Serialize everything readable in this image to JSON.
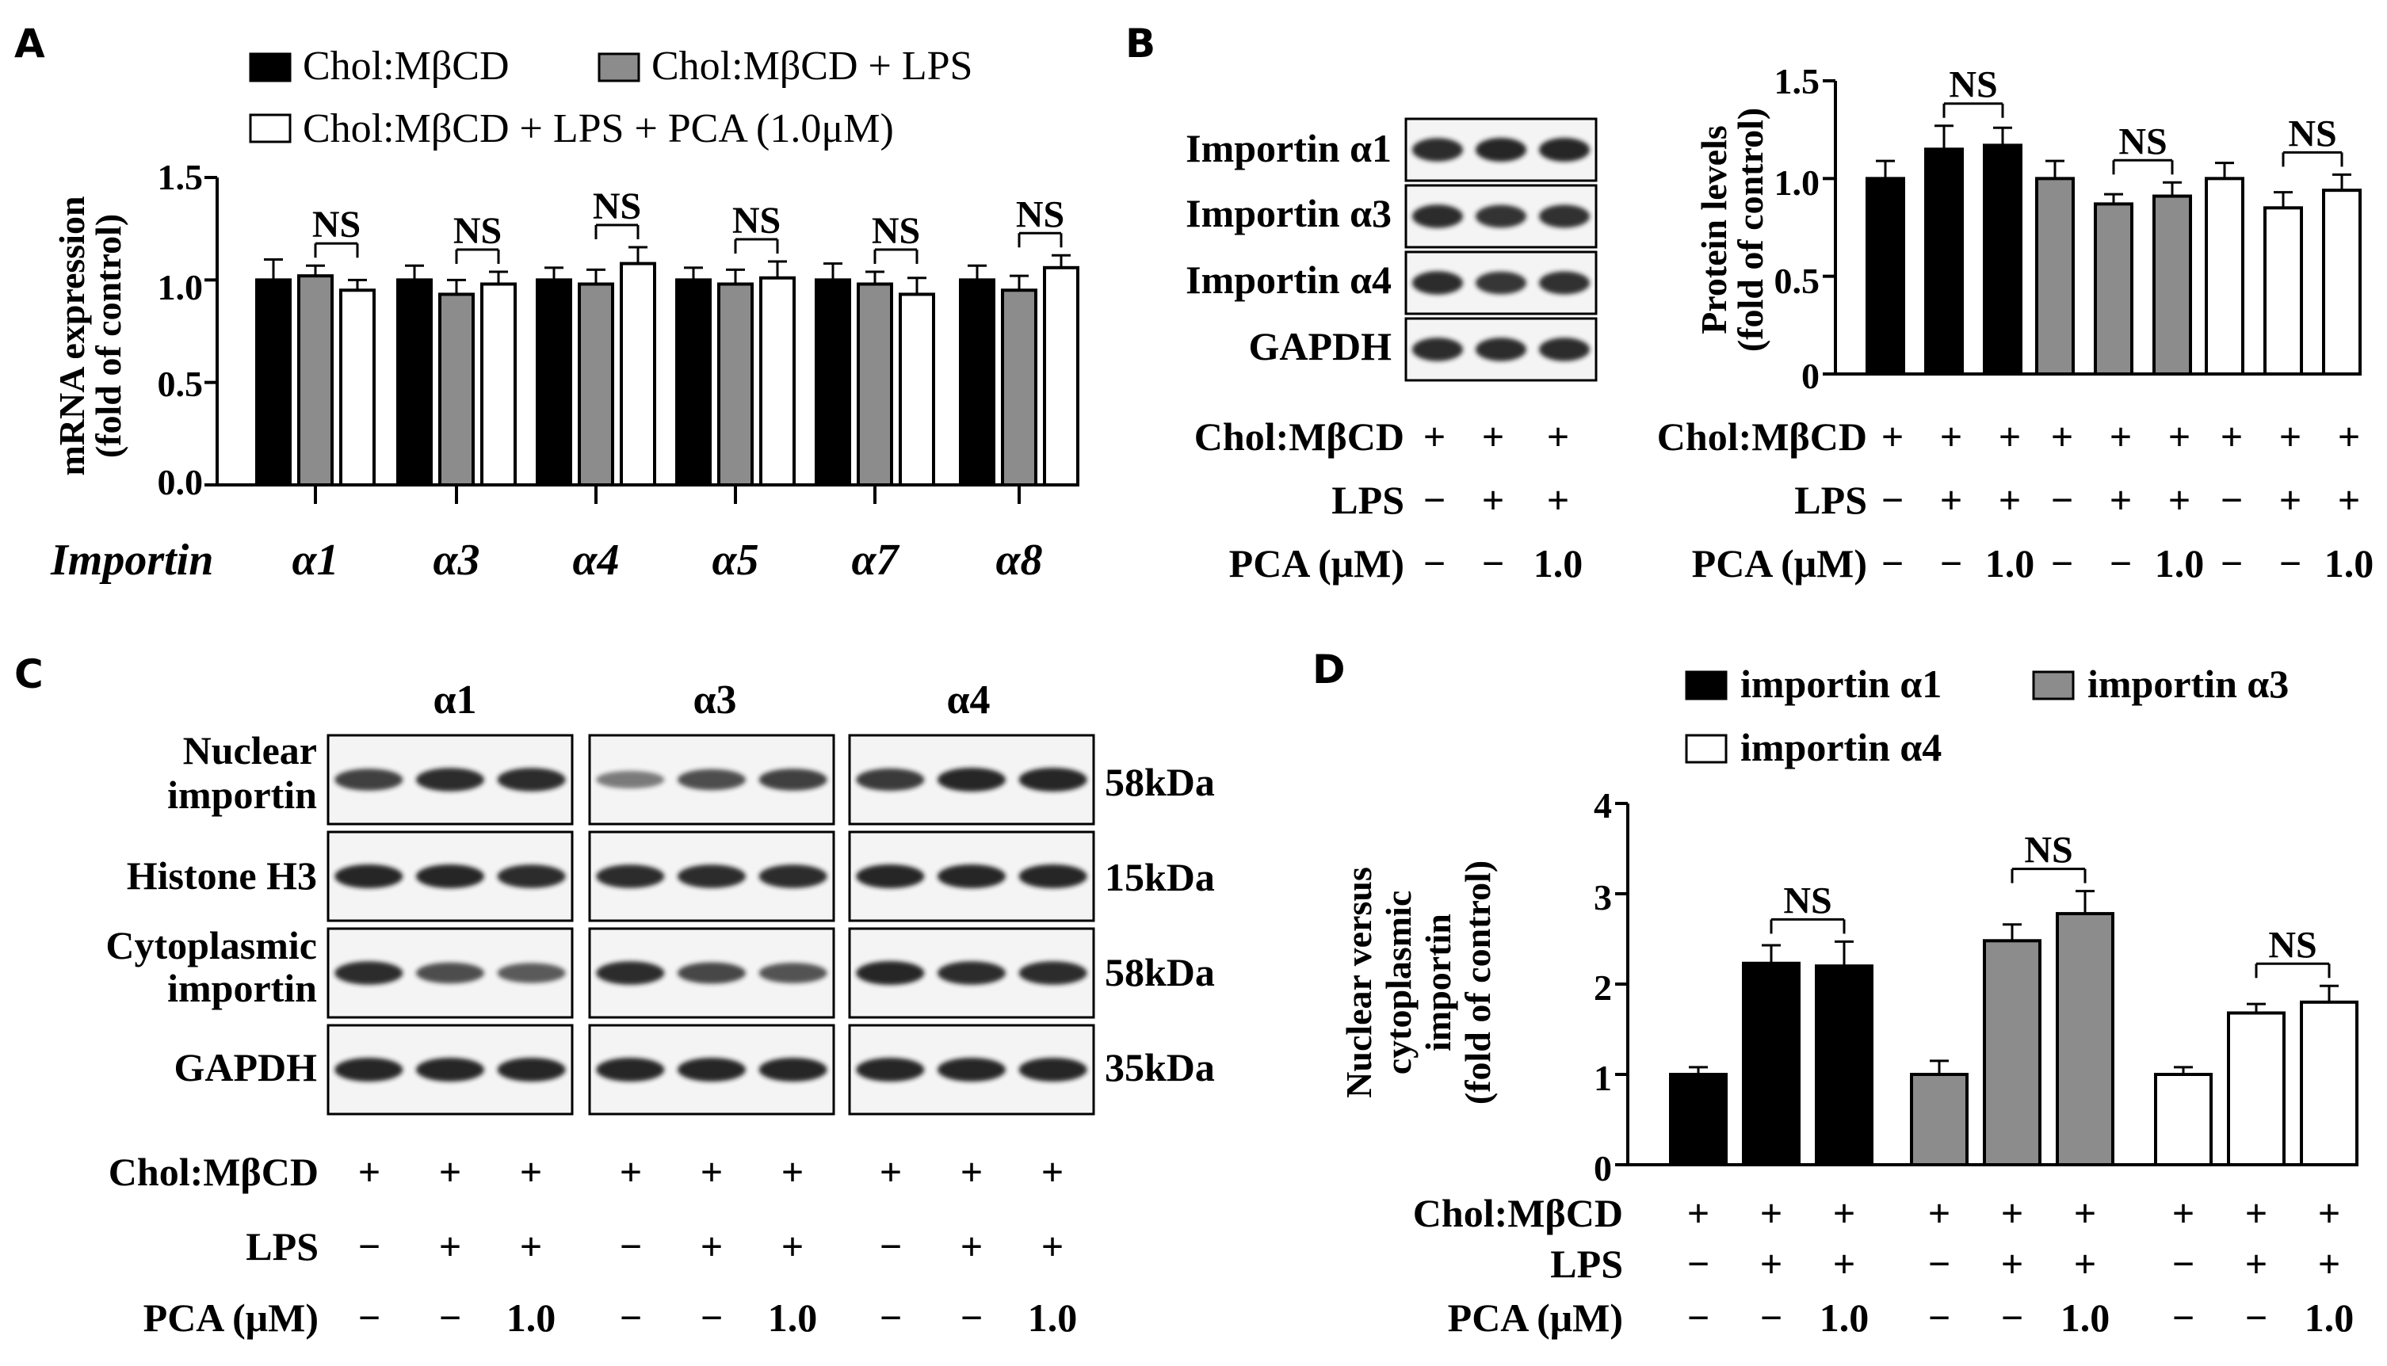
{
  "colors": {
    "black_bar": "#000000",
    "gray_bar": "#8c8c8c",
    "white_bar": "#ffffff",
    "blot_bg": "#f4f4f4",
    "band": "#1a1a1a"
  },
  "panels": {
    "A": {
      "label": "A",
      "legend": [
        "Chol:MβCD",
        "Chol:MβCD + LPS",
        "Chol:MβCD + LPS + PCA (1.0μM)"
      ],
      "ylabel_line1": "mRNA expression",
      "ylabel_line2": "(fold of control)",
      "yticks": [
        "1.5",
        "1.0",
        "0.5",
        "0.0"
      ],
      "xtitle": "Importin",
      "groups": [
        "α1",
        "α3",
        "α4",
        "α5",
        "α7",
        "α8"
      ],
      "sig": "NS"
    },
    "B": {
      "label": "B",
      "blot_labels": [
        "Importin α1",
        "Importin α3",
        "Importin α4",
        "GAPDH"
      ],
      "ylabel_line1": "Protein levels",
      "ylabel_line2": "(fold  of  control)",
      "yticks": [
        "1.5",
        "1.0",
        "0.5",
        "0"
      ],
      "sig": "NS",
      "rows": [
        {
          "name": "Chol:MβCD",
          "blot": [
            "+",
            "+",
            "+"
          ],
          "chart": [
            "+",
            "+",
            "+",
            "+",
            "+",
            "+",
            "+",
            "+",
            "+"
          ]
        },
        {
          "name": "LPS",
          "blot": [
            "−",
            "+",
            "+"
          ],
          "chart": [
            "−",
            "+",
            "+",
            "−",
            "+",
            "+",
            "−",
            "+",
            "+"
          ]
        },
        {
          "name": "PCA (μM)",
          "blot": [
            "−",
            "−",
            "1.0"
          ],
          "chart": [
            "−",
            "−",
            "1.0",
            "−",
            "−",
            "1.0",
            "−",
            "−",
            "1.0"
          ]
        }
      ]
    },
    "C": {
      "label": "C",
      "columns": [
        "α1",
        "α3",
        "α4"
      ],
      "row_labels": [
        [
          "Nuclear",
          "importin"
        ],
        [
          "Histone H3"
        ],
        [
          "Cytoplasmic",
          "importin"
        ],
        [
          "GAPDH"
        ]
      ],
      "sizes": [
        "58kDa",
        "15kDa",
        "58kDa",
        "35kDa"
      ],
      "rows": [
        {
          "name": "Chol:MβCD",
          "values": [
            "+",
            "+",
            "+",
            "+",
            "+",
            "+",
            "+",
            "+",
            "+"
          ]
        },
        {
          "name": "LPS",
          "values": [
            "−",
            "+",
            "+",
            "−",
            "+",
            "+",
            "−",
            "+",
            "+"
          ]
        },
        {
          "name": "PCA (μM)",
          "values": [
            "−",
            "−",
            "1.0",
            "−",
            "−",
            "1.0",
            "−",
            "−",
            "1.0"
          ]
        }
      ]
    },
    "D": {
      "label": "D",
      "legend": [
        "importin α1",
        "importin α3",
        "importin α4"
      ],
      "ylabel_lines": [
        "Nuclear versus",
        "cytoplasmic",
        "importin",
        "(fold  of  control)"
      ],
      "yticks": [
        "4",
        "3",
        "2",
        "1",
        "0"
      ],
      "sig": "NS",
      "rows": [
        {
          "name": "Chol:MβCD",
          "values": [
            "+",
            "+",
            "+",
            "+",
            "+",
            "+",
            "+",
            "+",
            "+"
          ]
        },
        {
          "name": "LPS",
          "values": [
            "−",
            "+",
            "+",
            "−",
            "+",
            "+",
            "−",
            "+",
            "+"
          ]
        },
        {
          "name": "PCA (μM)",
          "values": [
            "−",
            "−",
            "1.0",
            "−",
            "−",
            "1.0",
            "−",
            "−",
            "1.0"
          ]
        }
      ]
    }
  },
  "chart_data": [
    {
      "panel": "A",
      "type": "bar",
      "ylabel": "mRNA expression (fold of control)",
      "xlabel": "Importin",
      "ylim": [
        0,
        1.5
      ],
      "categories": [
        "α1",
        "α3",
        "α4",
        "α5",
        "α7",
        "α8"
      ],
      "series": [
        {
          "name": "Chol:MβCD",
          "color": "black",
          "values": [
            1.0,
            1.0,
            1.0,
            1.0,
            1.0,
            1.0
          ],
          "errors": [
            0.1,
            0.07,
            0.06,
            0.06,
            0.08,
            0.07
          ]
        },
        {
          "name": "Chol:MβCD + LPS",
          "color": "gray",
          "values": [
            1.02,
            0.93,
            0.98,
            0.98,
            0.98,
            0.95
          ],
          "errors": [
            0.05,
            0.07,
            0.07,
            0.07,
            0.06,
            0.07
          ]
        },
        {
          "name": "Chol:MβCD + LPS + PCA (1.0μM)",
          "color": "white",
          "values": [
            0.95,
            0.98,
            1.08,
            1.01,
            0.93,
            1.06
          ],
          "errors": [
            0.05,
            0.06,
            0.08,
            0.08,
            0.08,
            0.06
          ]
        }
      ],
      "annotations": [
        "NS",
        "NS",
        "NS",
        "NS",
        "NS",
        "NS"
      ]
    },
    {
      "panel": "B",
      "type": "bar",
      "ylabel": "Protein levels (fold of control)",
      "ylim": [
        0,
        1.5
      ],
      "groups": [
        {
          "colour": "black",
          "values": [
            1.0,
            1.15,
            1.17
          ],
          "errors": [
            0.09,
            0.12,
            0.09
          ]
        },
        {
          "colour": "gray",
          "values": [
            1.0,
            0.87,
            0.91
          ],
          "errors": [
            0.09,
            0.05,
            0.07
          ]
        },
        {
          "colour": "white",
          "values": [
            1.0,
            0.85,
            0.94
          ],
          "errors": [
            0.08,
            0.08,
            0.08
          ]
        }
      ],
      "annotations": [
        "NS",
        "NS",
        "NS"
      ]
    },
    {
      "panel": "D",
      "type": "bar",
      "ylabel": "Nuclear versus cytoplasmic importin (fold of control)",
      "ylim": [
        0,
        4
      ],
      "series": [
        {
          "name": "importin α1",
          "color": "black",
          "values": [
            1.0,
            2.23,
            2.2
          ],
          "errors": [
            0.08,
            0.2,
            0.27
          ]
        },
        {
          "name": "importin α3",
          "color": "gray",
          "values": [
            1.0,
            2.48,
            2.78
          ],
          "errors": [
            0.15,
            0.18,
            0.25
          ]
        },
        {
          "name": "importin α4",
          "color": "white",
          "values": [
            1.0,
            1.68,
            1.8
          ],
          "errors": [
            0.08,
            0.1,
            0.18
          ]
        }
      ],
      "annotations": [
        "NS",
        "NS",
        "NS"
      ]
    }
  ]
}
